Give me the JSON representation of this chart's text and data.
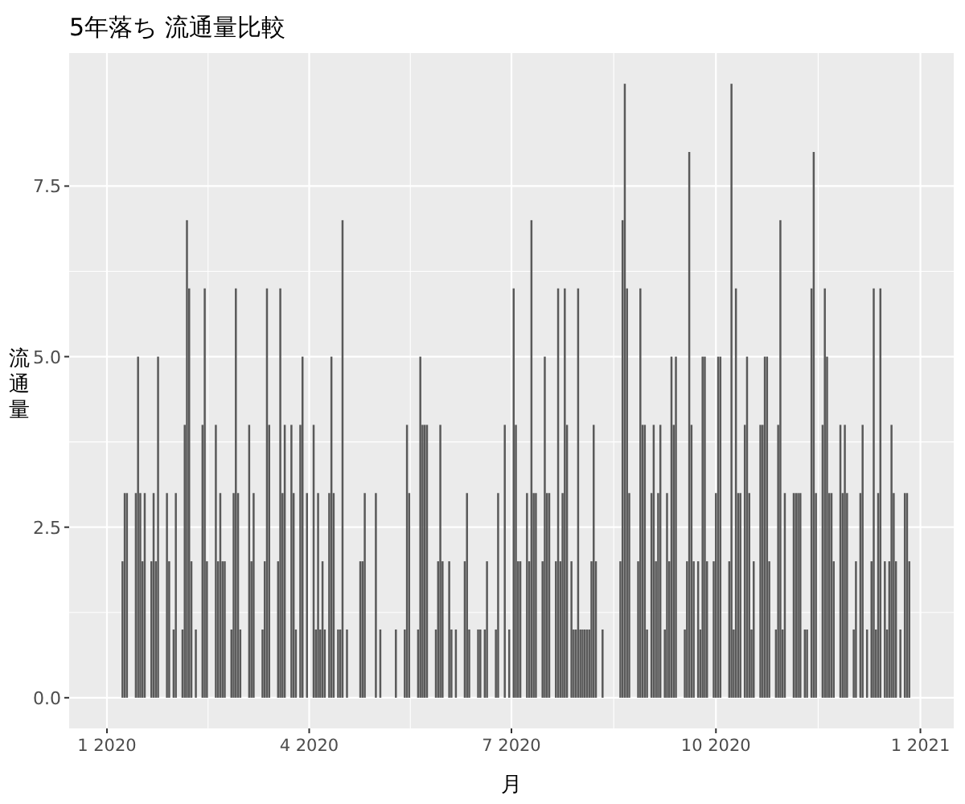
{
  "chart_data": {
    "type": "bar",
    "title": "5年落ち 流通量比較",
    "xlabel": "月",
    "ylabel": "流通量",
    "color": "#595959",
    "x": [
      "2020-01-08",
      "2020-01-09",
      "2020-01-10",
      "2020-01-14",
      "2020-01-15",
      "2020-01-16",
      "2020-01-17",
      "2020-01-18",
      "2020-01-21",
      "2020-01-22",
      "2020-01-23",
      "2020-01-24",
      "2020-01-28",
      "2020-01-29",
      "2020-01-31",
      "2020-02-01",
      "2020-02-04",
      "2020-02-05",
      "2020-02-06",
      "2020-02-07",
      "2020-02-08",
      "2020-02-10",
      "2020-02-13",
      "2020-02-14",
      "2020-02-15",
      "2020-02-19",
      "2020-02-20",
      "2020-02-21",
      "2020-02-22",
      "2020-02-23",
      "2020-02-26",
      "2020-02-27",
      "2020-02-28",
      "2020-02-29",
      "2020-03-01",
      "2020-03-05",
      "2020-03-06",
      "2020-03-07",
      "2020-03-11",
      "2020-03-12",
      "2020-03-13",
      "2020-03-14",
      "2020-03-18",
      "2020-03-19",
      "2020-03-20",
      "2020-03-21",
      "2020-03-24",
      "2020-03-25",
      "2020-03-26",
      "2020-03-28",
      "2020-03-29",
      "2020-03-31",
      "2020-04-03",
      "2020-04-04",
      "2020-04-05",
      "2020-04-06",
      "2020-04-07",
      "2020-04-08",
      "2020-04-10",
      "2020-04-11",
      "2020-04-12",
      "2020-04-14",
      "2020-04-15",
      "2020-04-16",
      "2020-04-18",
      "2020-04-24",
      "2020-04-25",
      "2020-04-26",
      "2020-05-01",
      "2020-05-03",
      "2020-05-10",
      "2020-05-14",
      "2020-05-15",
      "2020-05-16",
      "2020-05-20",
      "2020-05-21",
      "2020-05-22",
      "2020-05-23",
      "2020-05-24",
      "2020-05-28",
      "2020-05-29",
      "2020-05-30",
      "2020-05-31",
      "2020-06-03",
      "2020-06-04",
      "2020-06-06",
      "2020-06-10",
      "2020-06-11",
      "2020-06-12",
      "2020-06-16",
      "2020-06-17",
      "2020-06-19",
      "2020-06-20",
      "2020-06-24",
      "2020-06-25",
      "2020-06-28",
      "2020-06-30",
      "2020-07-02",
      "2020-07-03",
      "2020-07-04",
      "2020-07-05",
      "2020-07-08",
      "2020-07-09",
      "2020-07-10",
      "2020-07-11",
      "2020-07-12",
      "2020-07-15",
      "2020-07-16",
      "2020-07-17",
      "2020-07-18",
      "2020-07-21",
      "2020-07-22",
      "2020-07-23",
      "2020-07-24",
      "2020-07-25",
      "2020-07-26",
      "2020-07-28",
      "2020-07-29",
      "2020-07-30",
      "2020-07-31",
      "2020-08-01",
      "2020-08-02",
      "2020-08-03",
      "2020-08-04",
      "2020-08-05",
      "2020-08-06",
      "2020-08-07",
      "2020-08-08",
      "2020-08-11",
      "2020-08-19",
      "2020-08-20",
      "2020-08-21",
      "2020-08-22",
      "2020-08-23",
      "2020-08-27",
      "2020-08-28",
      "2020-08-29",
      "2020-08-30",
      "2020-08-31",
      "2020-09-02",
      "2020-09-03",
      "2020-09-04",
      "2020-09-05",
      "2020-09-06",
      "2020-09-08",
      "2020-09-09",
      "2020-09-10",
      "2020-09-11",
      "2020-09-12",
      "2020-09-13",
      "2020-09-17",
      "2020-09-18",
      "2020-09-19",
      "2020-09-20",
      "2020-09-21",
      "2020-09-23",
      "2020-09-24",
      "2020-09-25",
      "2020-09-26",
      "2020-09-27",
      "2020-09-30",
      "2020-10-01",
      "2020-10-02",
      "2020-10-03",
      "2020-10-07",
      "2020-10-08",
      "2020-10-09",
      "2020-10-10",
      "2020-10-11",
      "2020-10-12",
      "2020-10-14",
      "2020-10-15",
      "2020-10-16",
      "2020-10-17",
      "2020-10-18",
      "2020-10-21",
      "2020-10-22",
      "2020-10-23",
      "2020-10-24",
      "2020-10-25",
      "2020-10-28",
      "2020-10-29",
      "2020-10-30",
      "2020-10-31",
      "2020-11-01",
      "2020-11-05",
      "2020-11-06",
      "2020-11-07",
      "2020-11-08",
      "2020-11-10",
      "2020-11-11",
      "2020-11-13",
      "2020-11-14",
      "2020-11-15",
      "2020-11-18",
      "2020-11-19",
      "2020-11-20",
      "2020-11-21",
      "2020-11-22",
      "2020-11-23",
      "2020-11-26",
      "2020-11-27",
      "2020-11-28",
      "2020-11-29",
      "2020-12-02",
      "2020-12-03",
      "2020-12-05",
      "2020-12-06",
      "2020-12-08",
      "2020-12-10",
      "2020-12-11",
      "2020-12-12",
      "2020-12-13",
      "2020-12-14",
      "2020-12-16",
      "2020-12-17",
      "2020-12-18",
      "2020-12-19",
      "2020-12-20",
      "2020-12-21",
      "2020-12-23",
      "2020-12-25",
      "2020-12-26",
      "2020-12-27"
    ],
    "values": [
      2,
      3,
      3,
      3,
      5,
      3,
      2,
      3,
      2,
      3,
      2,
      5,
      3,
      2,
      1,
      3,
      1,
      4,
      7,
      6,
      2,
      1,
      4,
      6,
      2,
      4,
      2,
      3,
      2,
      2,
      1,
      3,
      6,
      3,
      1,
      4,
      2,
      3,
      1,
      2,
      6,
      4,
      2,
      6,
      3,
      4,
      4,
      3,
      1,
      4,
      5,
      3,
      4,
      1,
      3,
      1,
      2,
      1,
      3,
      5,
      3,
      1,
      1,
      7,
      1,
      2,
      2,
      3,
      3,
      1,
      1,
      1,
      4,
      3,
      1,
      5,
      4,
      4,
      4,
      1,
      2,
      4,
      2,
      2,
      1,
      1,
      2,
      3,
      1,
      1,
      1,
      1,
      2,
      1,
      3,
      4,
      1,
      6,
      4,
      2,
      2,
      3,
      2,
      7,
      3,
      3,
      2,
      5,
      3,
      3,
      2,
      6,
      2,
      3,
      6,
      4,
      2,
      1,
      1,
      6,
      1,
      1,
      1,
      1,
      1,
      2,
      4,
      2,
      1,
      2,
      7,
      9,
      6,
      3,
      2,
      6,
      4,
      4,
      1,
      3,
      4,
      2,
      3,
      4,
      1,
      3,
      2,
      5,
      4,
      5,
      1,
      2,
      8,
      4,
      2,
      2,
      1,
      5,
      5,
      2,
      2,
      3,
      5,
      5,
      2,
      9,
      1,
      6,
      3,
      3,
      4,
      5,
      3,
      1,
      2,
      4,
      4,
      5,
      5,
      2,
      1,
      4,
      7,
      1,
      3,
      3,
      3,
      3,
      3,
      1,
      1,
      6,
      8,
      3,
      4,
      6,
      5,
      3,
      3,
      2,
      4,
      3,
      4,
      3,
      1,
      2,
      3,
      4,
      1,
      2,
      6,
      1,
      3,
      6,
      2,
      1,
      2,
      4,
      3,
      2,
      1,
      3,
      3,
      2
    ],
    "xlim": [
      "2019-12-15",
      "2021-01-16"
    ],
    "xticks": [
      {
        "value": "2020-01-01",
        "label": "1 2020"
      },
      {
        "value": "2020-04-01",
        "label": "4 2020"
      },
      {
        "value": "2020-07-01",
        "label": "7 2020"
      },
      {
        "value": "2020-10-01",
        "label": "10 2020"
      },
      {
        "value": "2021-01-01",
        "label": "1 2021"
      }
    ],
    "ylim": [
      -0.45,
      9.45
    ],
    "yticks": [
      {
        "value": 0,
        "label": "0.0"
      },
      2.5,
      {
        "value": 5,
        "label": "5.0"
      },
      7.5
    ],
    "grid": true
  }
}
